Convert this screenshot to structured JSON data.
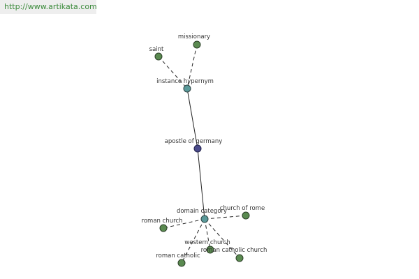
{
  "header": {
    "url": "http://www.artikata.com"
  },
  "nodes": [
    {
      "label": "saint"
    },
    {
      "label": "missionary"
    },
    {
      "label": "instance hypernym"
    },
    {
      "label": "apostle of germany"
    },
    {
      "label": "domain category"
    },
    {
      "label": "church of rome"
    },
    {
      "label": "roman church"
    },
    {
      "label": "western church"
    },
    {
      "label": "roman catholic church"
    },
    {
      "label": "roman catholic"
    }
  ]
}
